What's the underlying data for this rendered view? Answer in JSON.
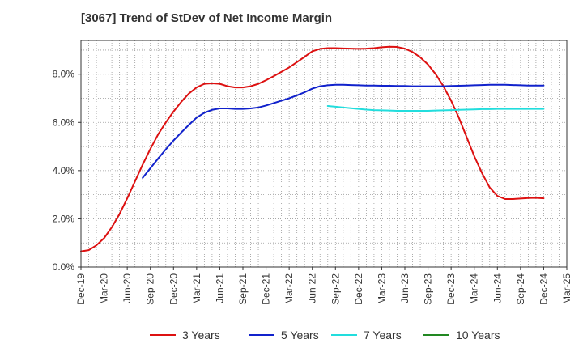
{
  "title": "[3067]  Trend of StDev of Net Income Margin",
  "chart_data": {
    "type": "line",
    "title": "[3067]  Trend of StDev of Net Income Margin",
    "xlabel": "",
    "ylabel": "",
    "ylim": [
      0,
      9.4
    ],
    "y_ticks": [
      0,
      2,
      4,
      6,
      8
    ],
    "y_tick_labels": [
      "0.0%",
      "2.0%",
      "4.0%",
      "6.0%",
      "8.0%"
    ],
    "x_range": [
      "2019-12",
      "2025-03"
    ],
    "x_tick_labels": [
      "Dec-19",
      "Mar-20",
      "Jun-20",
      "Sep-20",
      "Dec-20",
      "Mar-21",
      "Jun-21",
      "Sep-21",
      "Dec-21",
      "Mar-22",
      "Jun-22",
      "Sep-22",
      "Dec-22",
      "Mar-23",
      "Jun-23",
      "Sep-23",
      "Dec-23",
      "Mar-24",
      "Jun-24",
      "Sep-24",
      "Dec-24",
      "Mar-25"
    ],
    "grid": true,
    "legend_position": "bottom",
    "series": [
      {
        "name": "3 Years",
        "color": "#dd1111",
        "points": [
          [
            "2019-12",
            0.65
          ],
          [
            "2020-01",
            0.7
          ],
          [
            "2020-02",
            0.9
          ],
          [
            "2020-03",
            1.2
          ],
          [
            "2020-04",
            1.65
          ],
          [
            "2020-05",
            2.2
          ],
          [
            "2020-06",
            2.85
          ],
          [
            "2020-07",
            3.55
          ],
          [
            "2020-08",
            4.25
          ],
          [
            "2020-09",
            4.9
          ],
          [
            "2020-10",
            5.5
          ],
          [
            "2020-11",
            6.0
          ],
          [
            "2020-12",
            6.45
          ],
          [
            "2021-01",
            6.85
          ],
          [
            "2021-02",
            7.2
          ],
          [
            "2021-03",
            7.45
          ],
          [
            "2021-04",
            7.6
          ],
          [
            "2021-05",
            7.62
          ],
          [
            "2021-06",
            7.6
          ],
          [
            "2021-07",
            7.5
          ],
          [
            "2021-08",
            7.45
          ],
          [
            "2021-09",
            7.45
          ],
          [
            "2021-10",
            7.5
          ],
          [
            "2021-11",
            7.6
          ],
          [
            "2021-12",
            7.75
          ],
          [
            "2022-01",
            7.92
          ],
          [
            "2022-02",
            8.1
          ],
          [
            "2022-03",
            8.28
          ],
          [
            "2022-04",
            8.5
          ],
          [
            "2022-05",
            8.72
          ],
          [
            "2022-06",
            8.95
          ],
          [
            "2022-07",
            9.05
          ],
          [
            "2022-08",
            9.08
          ],
          [
            "2022-09",
            9.08
          ],
          [
            "2022-10",
            9.07
          ],
          [
            "2022-11",
            9.06
          ],
          [
            "2022-12",
            9.05
          ],
          [
            "2023-01",
            9.06
          ],
          [
            "2023-02",
            9.08
          ],
          [
            "2023-03",
            9.12
          ],
          [
            "2023-04",
            9.14
          ],
          [
            "2023-05",
            9.13
          ],
          [
            "2023-06",
            9.06
          ],
          [
            "2023-07",
            8.92
          ],
          [
            "2023-08",
            8.7
          ],
          [
            "2023-09",
            8.4
          ],
          [
            "2023-10",
            8.0
          ],
          [
            "2023-11",
            7.5
          ],
          [
            "2023-12",
            6.9
          ],
          [
            "2024-01",
            6.2
          ],
          [
            "2024-02",
            5.4
          ],
          [
            "2024-03",
            4.6
          ],
          [
            "2024-04",
            3.9
          ],
          [
            "2024-05",
            3.3
          ],
          [
            "2024-06",
            2.95
          ],
          [
            "2024-07",
            2.82
          ],
          [
            "2024-08",
            2.82
          ],
          [
            "2024-09",
            2.84
          ],
          [
            "2024-10",
            2.86
          ],
          [
            "2024-11",
            2.87
          ],
          [
            "2024-12",
            2.85
          ]
        ]
      },
      {
        "name": "5 Years",
        "color": "#1122cc",
        "points": [
          [
            "2020-08",
            3.7
          ],
          [
            "2020-09",
            4.1
          ],
          [
            "2020-10",
            4.5
          ],
          [
            "2020-11",
            4.88
          ],
          [
            "2020-12",
            5.25
          ],
          [
            "2021-01",
            5.58
          ],
          [
            "2021-02",
            5.9
          ],
          [
            "2021-03",
            6.2
          ],
          [
            "2021-04",
            6.4
          ],
          [
            "2021-05",
            6.52
          ],
          [
            "2021-06",
            6.58
          ],
          [
            "2021-07",
            6.58
          ],
          [
            "2021-08",
            6.56
          ],
          [
            "2021-09",
            6.56
          ],
          [
            "2021-10",
            6.58
          ],
          [
            "2021-11",
            6.62
          ],
          [
            "2021-12",
            6.7
          ],
          [
            "2022-01",
            6.8
          ],
          [
            "2022-02",
            6.9
          ],
          [
            "2022-03",
            7.0
          ],
          [
            "2022-04",
            7.12
          ],
          [
            "2022-05",
            7.25
          ],
          [
            "2022-06",
            7.4
          ],
          [
            "2022-07",
            7.5
          ],
          [
            "2022-08",
            7.54
          ],
          [
            "2022-09",
            7.56
          ],
          [
            "2022-10",
            7.56
          ],
          [
            "2022-11",
            7.55
          ],
          [
            "2022-12",
            7.54
          ],
          [
            "2023-01",
            7.53
          ],
          [
            "2023-02",
            7.53
          ],
          [
            "2023-03",
            7.52
          ],
          [
            "2023-04",
            7.52
          ],
          [
            "2023-05",
            7.51
          ],
          [
            "2023-06",
            7.51
          ],
          [
            "2023-07",
            7.5
          ],
          [
            "2023-08",
            7.5
          ],
          [
            "2023-09",
            7.5
          ],
          [
            "2023-10",
            7.5
          ],
          [
            "2023-11",
            7.5
          ],
          [
            "2023-12",
            7.51
          ],
          [
            "2024-01",
            7.52
          ],
          [
            "2024-02",
            7.53
          ],
          [
            "2024-03",
            7.54
          ],
          [
            "2024-04",
            7.55
          ],
          [
            "2024-05",
            7.56
          ],
          [
            "2024-06",
            7.56
          ],
          [
            "2024-07",
            7.56
          ],
          [
            "2024-08",
            7.55
          ],
          [
            "2024-09",
            7.54
          ],
          [
            "2024-10",
            7.53
          ],
          [
            "2024-11",
            7.53
          ],
          [
            "2024-12",
            7.53
          ]
        ]
      },
      {
        "name": "7 Years",
        "color": "#22dddd",
        "points": [
          [
            "2022-08",
            6.68
          ],
          [
            "2022-09",
            6.65
          ],
          [
            "2022-10",
            6.62
          ],
          [
            "2022-11",
            6.59
          ],
          [
            "2022-12",
            6.56
          ],
          [
            "2023-01",
            6.53
          ],
          [
            "2023-02",
            6.51
          ],
          [
            "2023-03",
            6.5
          ],
          [
            "2023-04",
            6.49
          ],
          [
            "2023-05",
            6.48
          ],
          [
            "2023-06",
            6.48
          ],
          [
            "2023-07",
            6.48
          ],
          [
            "2023-08",
            6.48
          ],
          [
            "2023-09",
            6.48
          ],
          [
            "2023-10",
            6.49
          ],
          [
            "2023-11",
            6.5
          ],
          [
            "2023-12",
            6.51
          ],
          [
            "2024-01",
            6.52
          ],
          [
            "2024-02",
            6.53
          ],
          [
            "2024-03",
            6.54
          ],
          [
            "2024-04",
            6.55
          ],
          [
            "2024-05",
            6.55
          ],
          [
            "2024-06",
            6.56
          ],
          [
            "2024-07",
            6.56
          ],
          [
            "2024-08",
            6.56
          ],
          [
            "2024-09",
            6.56
          ],
          [
            "2024-10",
            6.56
          ],
          [
            "2024-11",
            6.56
          ],
          [
            "2024-12",
            6.56
          ]
        ]
      },
      {
        "name": "10 Years",
        "color": "#228822",
        "points": []
      }
    ]
  }
}
